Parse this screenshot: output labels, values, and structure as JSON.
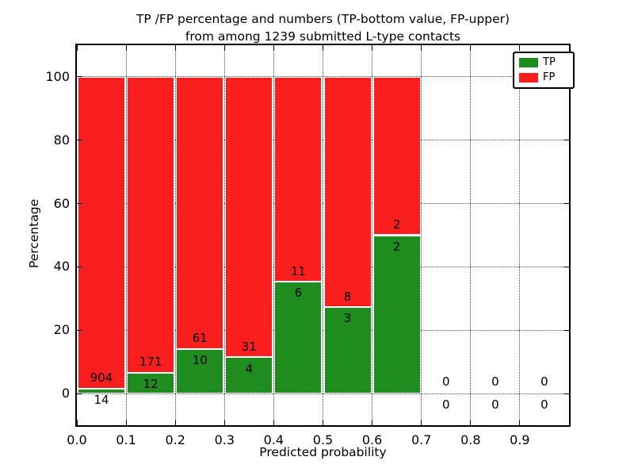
{
  "figure": {
    "title_line1": "TP /FP percentage and numbers (TP-bottom value, FP-upper)",
    "title_line2": "from among 1239 submitted L-type contacts"
  },
  "chart_data": {
    "type": "bar",
    "stacked": true,
    "title": "TP /FP percentage and numbers (TP-bottom value, FP-upper) from among 1239 submitted L-type contacts",
    "xlabel": "Predicted probability",
    "ylabel": "Percentage",
    "xlim": [
      0.0,
      1.0
    ],
    "ylim": [
      -10,
      110
    ],
    "x_tick_values": [
      0.0,
      0.1,
      0.2,
      0.3,
      0.4,
      0.5,
      0.6,
      0.7,
      0.8,
      0.9
    ],
    "x_tick_labels": [
      "0.0",
      "0.1",
      "0.2",
      "0.3",
      "0.4",
      "0.5",
      "0.6",
      "0.7",
      "0.8",
      "0.9"
    ],
    "y_tick_values": [
      0,
      20,
      40,
      60,
      80,
      100
    ],
    "y_tick_labels": [
      "0",
      "20",
      "40",
      "60",
      "80",
      "100"
    ],
    "grid": {
      "style": "dotted",
      "vertical_at": [
        0.1,
        0.2,
        0.3,
        0.4,
        0.5,
        0.6,
        0.7,
        0.8,
        0.9
      ],
      "horizontal_at": [
        0,
        20,
        40,
        60,
        80,
        100
      ]
    },
    "legend": {
      "position": "upper right",
      "entries": [
        {
          "label": "TP",
          "color": "#1e8c1e"
        },
        {
          "label": "FP",
          "color": "#fb1e1e"
        }
      ]
    },
    "bins": [
      {
        "x_start": 0.0,
        "x_end": 0.1,
        "tp_count": 14,
        "fp_count": 904,
        "tp_pct": 1.53,
        "fp_pct": 98.47,
        "has_bar": true
      },
      {
        "x_start": 0.1,
        "x_end": 0.2,
        "tp_count": 12,
        "fp_count": 171,
        "tp_pct": 6.56,
        "fp_pct": 93.44,
        "has_bar": true
      },
      {
        "x_start": 0.2,
        "x_end": 0.3,
        "tp_count": 10,
        "fp_count": 61,
        "tp_pct": 14.08,
        "fp_pct": 85.92,
        "has_bar": true
      },
      {
        "x_start": 0.3,
        "x_end": 0.4,
        "tp_count": 4,
        "fp_count": 31,
        "tp_pct": 11.43,
        "fp_pct": 88.57,
        "has_bar": true
      },
      {
        "x_start": 0.4,
        "x_end": 0.5,
        "tp_count": 6,
        "fp_count": 11,
        "tp_pct": 35.29,
        "fp_pct": 64.71,
        "has_bar": true
      },
      {
        "x_start": 0.5,
        "x_end": 0.6,
        "tp_count": 3,
        "fp_count": 8,
        "tp_pct": 27.27,
        "fp_pct": 72.73,
        "has_bar": true
      },
      {
        "x_start": 0.6,
        "x_end": 0.7,
        "tp_count": 2,
        "fp_count": 2,
        "tp_pct": 50.0,
        "fp_pct": 50.0,
        "has_bar": true
      },
      {
        "x_start": 0.7,
        "x_end": 0.8,
        "tp_count": 0,
        "fp_count": 0,
        "tp_pct": 0,
        "fp_pct": 0,
        "has_bar": false
      },
      {
        "x_start": 0.8,
        "x_end": 0.9,
        "tp_count": 0,
        "fp_count": 0,
        "tp_pct": 0,
        "fp_pct": 0,
        "has_bar": false
      },
      {
        "x_start": 0.9,
        "x_end": 1.0,
        "tp_count": 0,
        "fp_count": 0,
        "tp_pct": 0,
        "fp_pct": 0,
        "has_bar": false
      }
    ],
    "colors": {
      "tp": "#1e8c1e",
      "fp": "#fb1e1e",
      "background": "#ffffff",
      "text": "#000000",
      "grid": "#444444"
    }
  }
}
